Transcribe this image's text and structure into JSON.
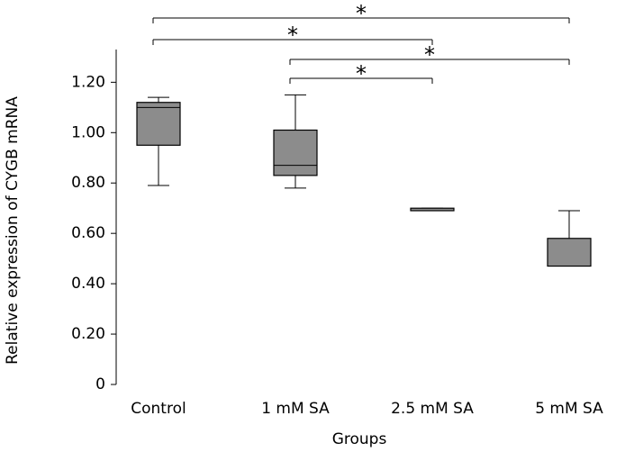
{
  "chart_data": {
    "type": "box",
    "x_label": "Groups",
    "y_label": "Relative expression of CYGB mRNA",
    "categories": [
      "Control",
      "1 mM SA",
      "2.5 mM SA",
      "5 mM SA"
    ],
    "boxes": [
      {
        "min": 0.79,
        "q1": 0.95,
        "median": 1.1,
        "q3": 1.12,
        "max": 1.14
      },
      {
        "min": 0.78,
        "q1": 0.83,
        "median": 0.87,
        "q3": 1.01,
        "max": 1.15
      },
      {
        "min": 0.69,
        "q1": 0.69,
        "median": 0.69,
        "q3": 0.7,
        "max": 0.7
      },
      {
        "min": 0.47,
        "q1": 0.47,
        "median": 0.47,
        "q3": 0.58,
        "max": 0.69
      }
    ],
    "color": "#8c8c8c",
    "ylim": [
      0,
      1.33
    ],
    "yticks": [
      0,
      {
        "value": 0.2,
        "label": "0.20"
      },
      {
        "value": 0.4,
        "label": "0.40"
      },
      {
        "value": 0.6,
        "label": "0.60"
      },
      {
        "value": 0.8,
        "label": "0.80"
      },
      {
        "value": 1.0,
        "label": "1.00"
      },
      {
        "value": 1.2,
        "label": "1.20"
      }
    ],
    "significance": [
      {
        "from": "Control",
        "to": "5 mM SA",
        "label": "*"
      },
      {
        "from": "Control",
        "to": "2.5 mM SA",
        "label": "*"
      },
      {
        "from": "1 mM SA",
        "to": "5 mM SA",
        "label": "*"
      },
      {
        "from": "1 mM SA",
        "to": "2.5 mM SA",
        "label": "*"
      }
    ]
  }
}
